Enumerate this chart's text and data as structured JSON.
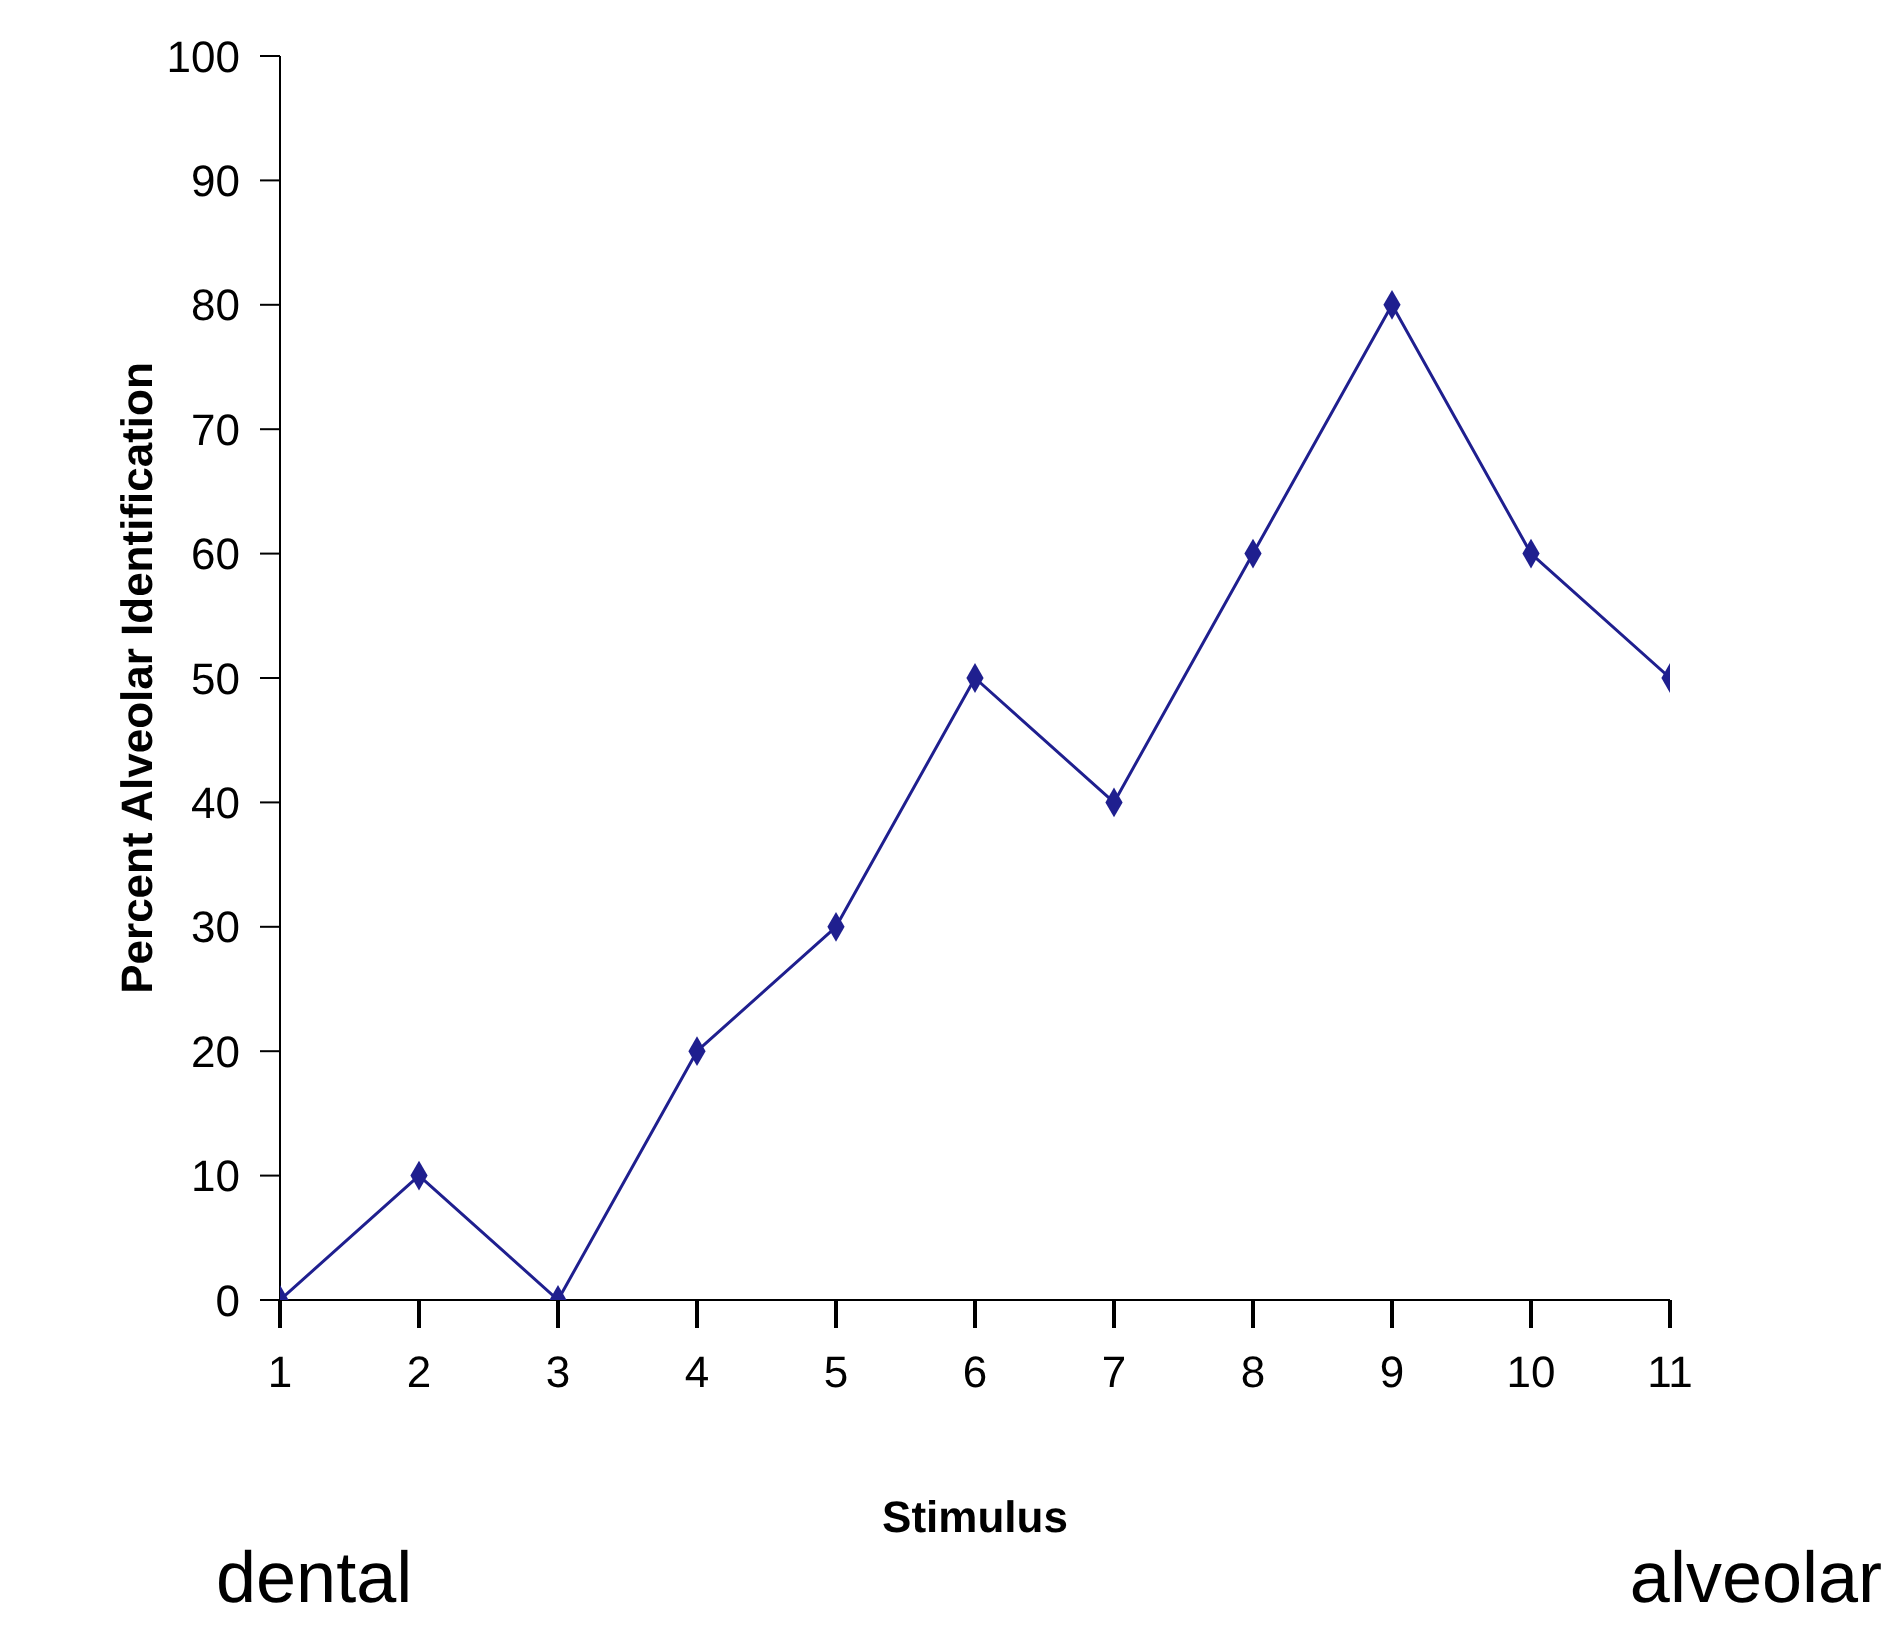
{
  "chart_data": {
    "type": "line",
    "xlabel": "Stimulus",
    "ylabel": "Percent Alveolar Identification",
    "x": [
      1,
      2,
      3,
      4,
      5,
      6,
      7,
      8,
      9,
      10,
      11
    ],
    "values": [
      0,
      10,
      0,
      20,
      30,
      50,
      40,
      60,
      80,
      60,
      50
    ],
    "color": "#1f1f8f",
    "marker": "diamond",
    "xlim": [
      1,
      11
    ],
    "xticks": [
      1,
      2,
      3,
      4,
      5,
      6,
      7,
      8,
      9,
      10,
      11
    ],
    "ylim": [
      0,
      100
    ],
    "yticks": [
      0,
      10,
      20,
      30,
      40,
      50,
      60,
      70,
      80,
      90,
      100
    ],
    "annotations": [
      "dental",
      "alveolar"
    ]
  }
}
